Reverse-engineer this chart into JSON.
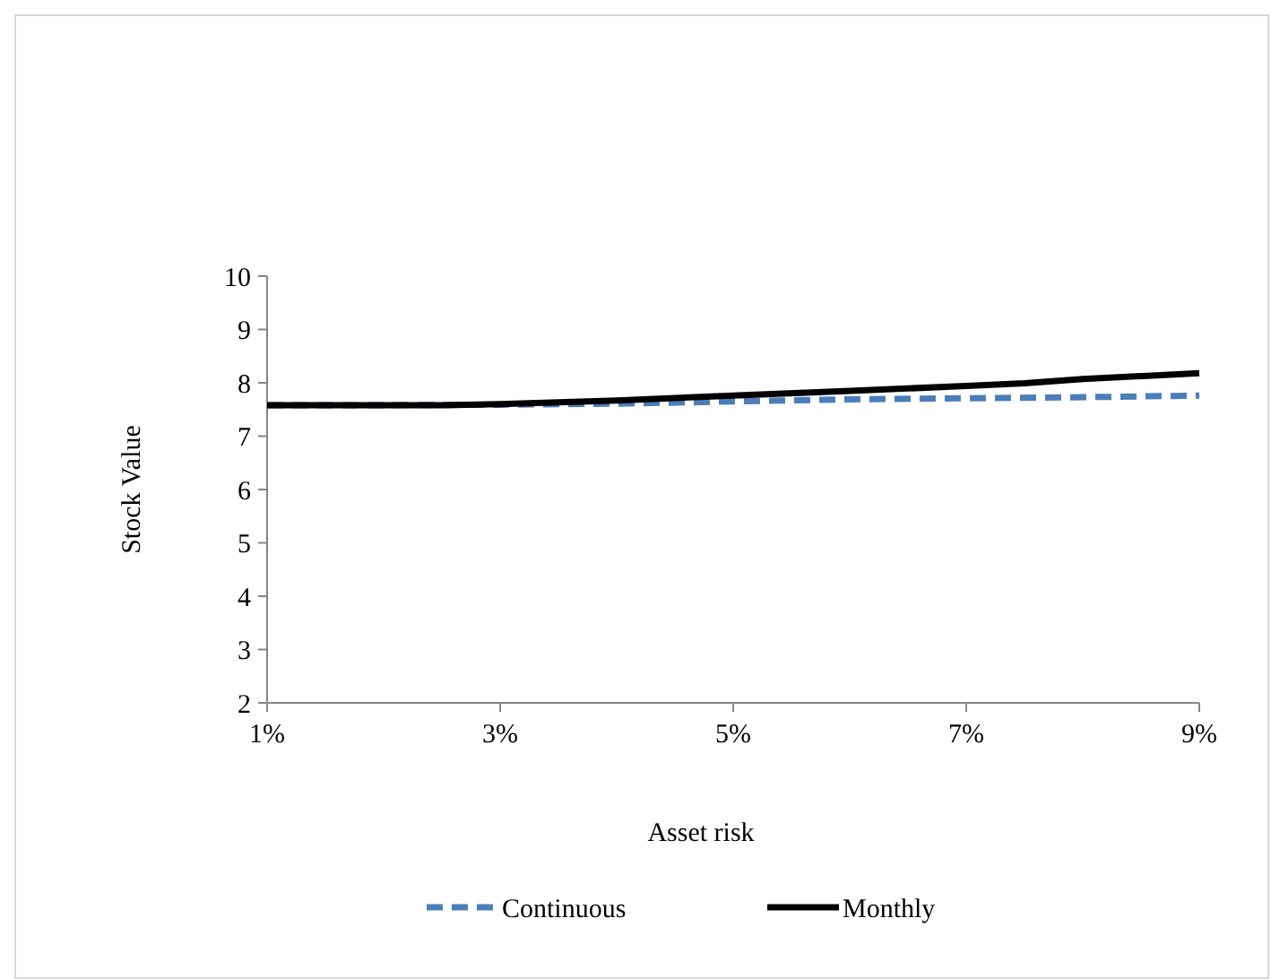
{
  "chart_data": {
    "type": "line",
    "xlabel": "Asset risk",
    "ylabel": "Stock Value",
    "xlim": [
      1,
      9
    ],
    "xticks": [
      {
        "value": 1,
        "label": "1%"
      },
      {
        "value": 3,
        "label": "3%"
      },
      {
        "value": 5,
        "label": "5%"
      },
      {
        "value": 7,
        "label": "7%"
      },
      {
        "value": 9,
        "label": "9%"
      }
    ],
    "ylim": [
      2,
      10
    ],
    "yticks": [
      2,
      3,
      4,
      5,
      6,
      7,
      8,
      9,
      10
    ],
    "grid": false,
    "legend": "bottom",
    "series": [
      {
        "name": "Continuous",
        "color": "#4a7ebb",
        "line_style": "dashed",
        "x": [
          1,
          2,
          3,
          4,
          5,
          6,
          7,
          8,
          9
        ],
        "values": [
          7.58,
          7.58,
          7.59,
          7.61,
          7.65,
          7.69,
          7.71,
          7.73,
          7.76
        ]
      },
      {
        "name": "Monthly",
        "color": "#000000",
        "line_style": "solid",
        "x": [
          1,
          2,
          2.5,
          3,
          4,
          5,
          6,
          7,
          7.5,
          8,
          9
        ],
        "values": [
          7.58,
          7.58,
          7.58,
          7.6,
          7.67,
          7.76,
          7.85,
          7.94,
          7.99,
          8.07,
          8.18
        ]
      }
    ]
  }
}
